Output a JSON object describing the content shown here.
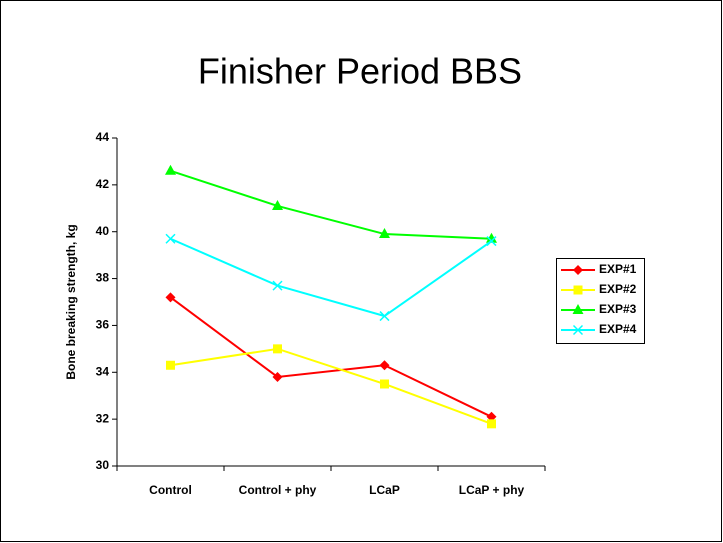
{
  "chart_data": {
    "type": "line",
    "title": "Finisher Period BBS",
    "y_label": "Bone breaking strength, kg",
    "categories": [
      "Control",
      "Control + phy",
      "LCaP",
      "LCaP + phy"
    ],
    "series": [
      {
        "name": "EXP#1",
        "color": "#ff0000",
        "marker": "diamond",
        "values": [
          37.2,
          33.8,
          34.3,
          32.1
        ]
      },
      {
        "name": "EXP#2",
        "color": "#ffff00",
        "marker": "square",
        "values": [
          34.3,
          35.0,
          33.5,
          31.8
        ]
      },
      {
        "name": "EXP#3",
        "color": "#00ff00",
        "marker": "triangle",
        "values": [
          42.6,
          41.1,
          39.9,
          39.7
        ]
      },
      {
        "name": "EXP#4",
        "color": "#00ffff",
        "marker": "x",
        "values": [
          39.7,
          37.7,
          36.4,
          39.6
        ]
      }
    ],
    "ylim": [
      30,
      44
    ],
    "yticks": [
      30,
      32,
      34,
      36,
      38,
      40,
      42,
      44
    ],
    "grid": false,
    "legend": "right"
  }
}
